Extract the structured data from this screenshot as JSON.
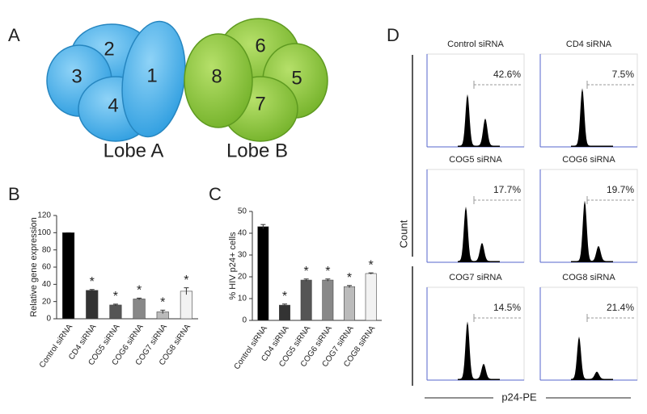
{
  "panel_labels": [
    "A",
    "B",
    "C",
    "D"
  ],
  "diagram": {
    "lobes": [
      {
        "label": "Lobe A",
        "segments": [
          "1",
          "2",
          "3",
          "4"
        ]
      },
      {
        "label": "Lobe B",
        "segments": [
          "5",
          "6",
          "7",
          "8"
        ]
      }
    ]
  },
  "chart_data": [
    {
      "type": "bar",
      "y_label": "Relative gene expression",
      "categories": [
        "Control siRNA",
        "CD4 siRNA",
        "COG5 siRNA",
        "COG6 siRNA",
        "COG7 siRNA",
        "COG8 siRNA"
      ],
      "values": [
        100,
        33,
        16,
        23,
        8,
        32
      ],
      "errors": [
        0,
        1,
        1,
        1,
        2,
        4
      ],
      "colors": [
        "#000000",
        "#333333",
        "#555555",
        "#888888",
        "#bbbbbb",
        "#f2f2f2"
      ],
      "significance": [
        null,
        "*",
        "*",
        "*",
        "*",
        "*"
      ],
      "ylim": [
        0,
        120
      ],
      "yticks": [
        0,
        20,
        40,
        60,
        80,
        100,
        120
      ]
    },
    {
      "type": "bar",
      "y_label": "% HIV p24+ cells",
      "categories": [
        "Control siRNA",
        "CD4 siRNA",
        "COG5 siRNA",
        "COG6 siRNA",
        "COG7 siRNA",
        "COG8 siRNA"
      ],
      "values": [
        43,
        7,
        18.5,
        18.5,
        15.5,
        21.5
      ],
      "errors": [
        1,
        0.5,
        0.5,
        0.5,
        0.5,
        0.3
      ],
      "colors": [
        "#000000",
        "#333333",
        "#555555",
        "#888888",
        "#bbbbbb",
        "#f2f2f2"
      ],
      "significance": [
        null,
        "*",
        "*",
        "*",
        "*",
        "*"
      ],
      "ylim": [
        0,
        50
      ],
      "yticks": [
        0,
        10,
        20,
        30,
        40,
        50
      ]
    }
  ],
  "flow": {
    "y_label": "Count",
    "x_label": "p24-PE",
    "panels": [
      {
        "title": "Control siRNA",
        "gate": "42.6%"
      },
      {
        "title": "CD4 siRNA",
        "gate": "7.5%"
      },
      {
        "title": "COG5 siRNA",
        "gate": "17.7%"
      },
      {
        "title": "COG6 siRNA",
        "gate": "19.7%"
      },
      {
        "title": "COG7 siRNA",
        "gate": "14.5%"
      },
      {
        "title": "COG8 siRNA",
        "gate": "21.4%"
      }
    ]
  }
}
